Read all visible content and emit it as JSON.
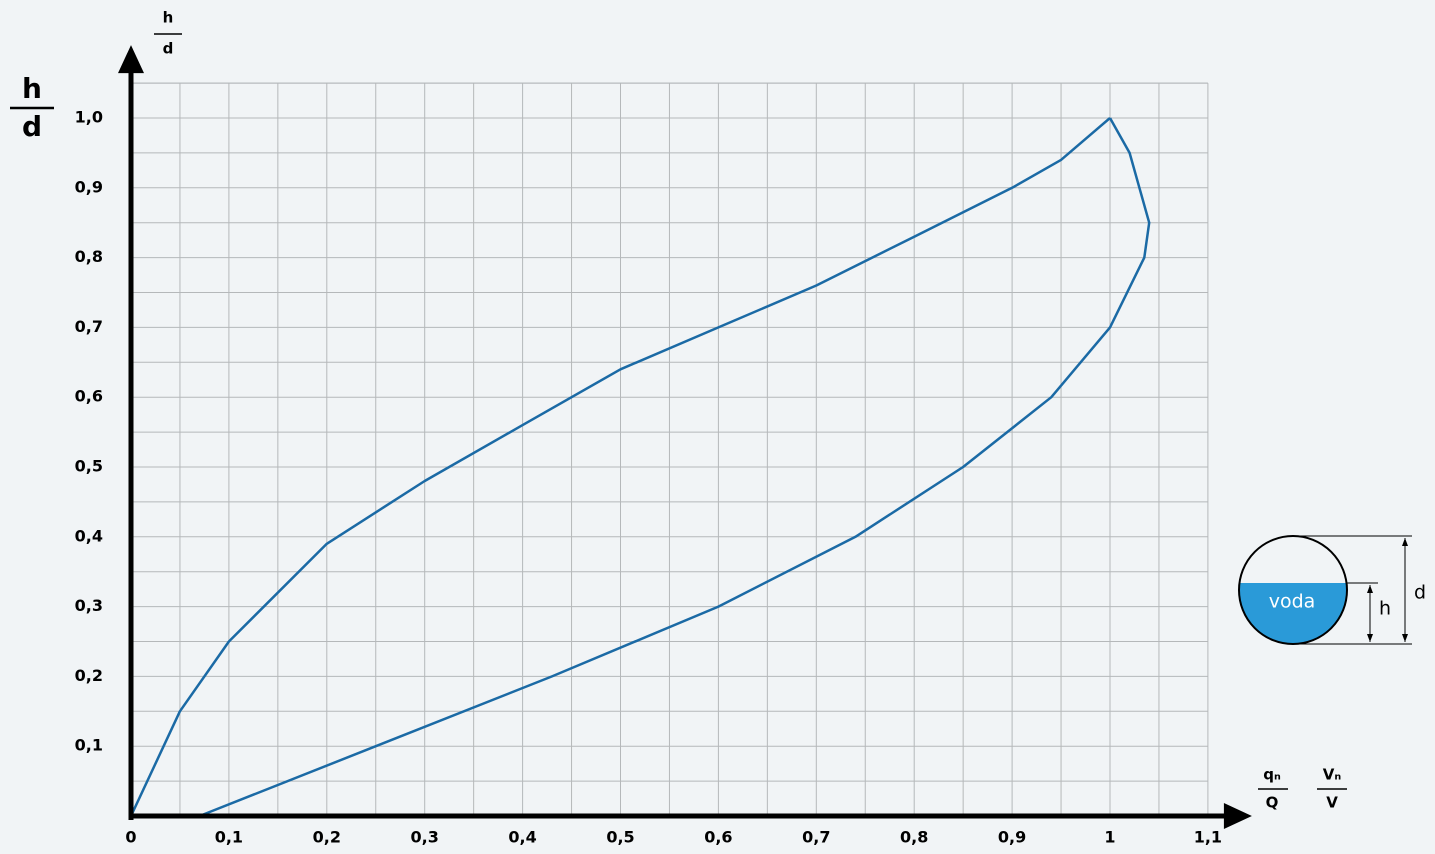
{
  "chart_data": {
    "type": "line",
    "y_label": {
      "num": "h",
      "den": "d"
    },
    "x_label": [
      {
        "num": "qₙ",
        "den": "Q"
      },
      {
        "num": "Vₙ",
        "den": "V"
      }
    ],
    "xlim": [
      0,
      1.1
    ],
    "ylim": [
      0,
      1.05
    ],
    "xticks": [
      0,
      {
        "value": 0.1,
        "label": "0,1"
      },
      {
        "value": 0.2,
        "label": "0,2"
      },
      {
        "value": 0.3,
        "label": "0,3"
      },
      {
        "value": 0.4,
        "label": "0,4"
      },
      {
        "value": 0.5,
        "label": "0,5"
      },
      {
        "value": 0.6,
        "label": "0,6"
      },
      {
        "value": 0.7,
        "label": "0,7"
      },
      {
        "value": 0.8,
        "label": "0,8"
      },
      {
        "value": 0.9,
        "label": "0,9"
      },
      1,
      {
        "value": 1.1,
        "label": "1,1"
      }
    ],
    "yticks": [
      {
        "value": 0.1,
        "label": "0,1"
      },
      {
        "value": 0.2,
        "label": "0,2"
      },
      {
        "value": 0.3,
        "label": "0,3"
      },
      {
        "value": 0.4,
        "label": "0,4"
      },
      {
        "value": 0.5,
        "label": "0,5"
      },
      {
        "value": 0.6,
        "label": "0,6"
      },
      {
        "value": 0.7,
        "label": "0,7"
      },
      {
        "value": 0.8,
        "label": "0,8"
      },
      {
        "value": 0.9,
        "label": "0,9"
      },
      {
        "value": 1,
        "label": "1,0"
      }
    ],
    "grid": true,
    "series": [
      {
        "color": "#1b6aa5",
        "x": [
          0,
          0.05,
          0.1,
          0.2,
          0.3,
          0.4,
          0.5,
          0.6,
          0.7,
          0.8,
          0.9,
          0.95,
          1
        ],
        "values": [
          0,
          0.15,
          0.25,
          0.39,
          0.48,
          0.56,
          0.64,
          0.7,
          0.76,
          0.83,
          0.9,
          0.94,
          1
        ]
      },
      {
        "color": "#1b6aa5",
        "x": [
          0.07,
          0.25,
          0.43,
          0.6,
          0.74,
          0.85,
          0.94,
          1,
          1.035,
          1.04,
          1.03,
          1.02,
          1
        ],
        "values": [
          0,
          0.1,
          0.2,
          0.3,
          0.4,
          0.5,
          0.6,
          0.7,
          0.8,
          0.85,
          0.9,
          0.95,
          1
        ]
      }
    ]
  },
  "diagram": {
    "fill_label": "voda",
    "h_label": "h",
    "d_label": "d"
  }
}
